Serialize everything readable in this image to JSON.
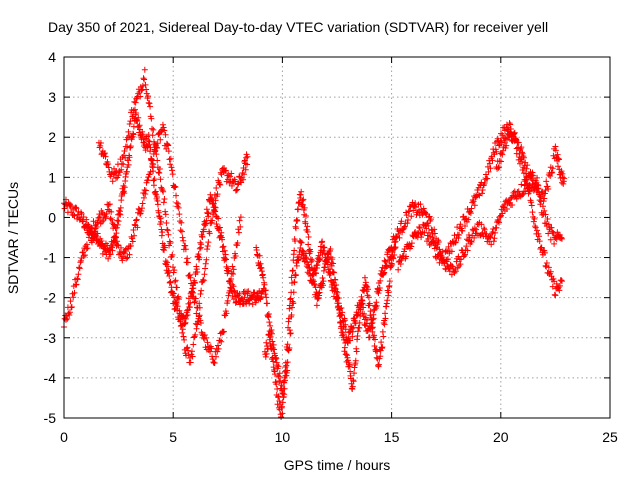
{
  "chart_data": {
    "type": "scatter",
    "title": "Day 350 of 2021, Sidereal Day-to-day VTEC variation (SDTVAR) for receiver yell",
    "xlabel": "GPS time / hours",
    "ylabel": "SDTVAR / TECUs",
    "xlim": [
      0,
      25
    ],
    "ylim": [
      -5,
      4
    ],
    "xticks": [
      0,
      5,
      10,
      15,
      20,
      25
    ],
    "yticks": [
      -5,
      -4,
      -3,
      -2,
      -1,
      0,
      1,
      2,
      3,
      4
    ],
    "xtick_labels": [
      "0",
      "5",
      "10",
      "15",
      "20",
      "25"
    ],
    "ytick_labels": [
      "-5",
      "-4",
      "-3",
      "-2",
      "-1",
      "0",
      "1",
      "2",
      "3",
      "4"
    ],
    "grid": true,
    "marker": "+",
    "series": [
      {
        "name": "SDTVAR",
        "color": "#ff0000",
        "segments": [
          {
            "x": [
              0.0,
              0.3,
              0.6,
              0.9,
              1.1,
              1.3,
              1.5,
              1.7,
              1.9,
              2.1,
              2.3,
              2.5,
              2.7,
              2.9,
              3.1,
              3.3,
              3.5,
              3.7,
              3.9,
              4.1,
              4.3,
              4.5,
              4.7,
              4.9,
              5.1,
              5.3,
              5.5,
              5.7,
              5.9,
              6.1,
              6.3,
              6.5,
              6.7,
              6.9,
              7.1,
              7.3,
              7.5,
              7.7,
              7.9,
              8.1,
              8.3,
              8.5,
              8.7,
              8.9,
              9.1
            ],
            "y": [
              0.3,
              0.2,
              0.1,
              -0.1,
              -0.3,
              -0.5,
              -0.4,
              -0.7,
              -0.8,
              -0.9,
              -0.6,
              0.0,
              0.6,
              1.2,
              2.0,
              2.5,
              2.2,
              1.8,
              1.9,
              1.0,
              0.3,
              -0.5,
              -1.2,
              -1.8,
              -2.2,
              -2.5,
              -2.6,
              -2.2,
              -1.8,
              -1.2,
              -0.6,
              0.0,
              0.4,
              0.2,
              -0.3,
              -0.8,
              -1.3,
              -1.8,
              -2.0,
              -2.0,
              -2.0,
              -2.0,
              -2.0,
              -2.0,
              -2.0
            ]
          },
          {
            "x": [
              0.0,
              0.3,
              0.6,
              0.9,
              1.2,
              1.5,
              1.8,
              2.1,
              2.4,
              2.7,
              3.0,
              3.3,
              3.6,
              3.9,
              4.2,
              4.5,
              4.8,
              5.1,
              5.4,
              5.7,
              6.0,
              6.3,
              6.6,
              6.9,
              7.2,
              7.5,
              7.8,
              8.1
            ],
            "y": [
              -2.6,
              -2.2,
              -1.5,
              -0.9,
              -0.4,
              -0.1,
              0.1,
              0.2,
              -0.6,
              -1.0,
              -0.8,
              -0.2,
              0.4,
              1.1,
              1.7,
              2.2,
              1.6,
              0.6,
              -0.4,
              -1.3,
              -2.1,
              -2.8,
              -3.3,
              -3.5,
              -3.0,
              -2.2,
              -1.0,
              0.0
            ]
          },
          {
            "x": [
              1.6,
              1.9,
              2.2,
              2.5,
              2.8,
              3.1,
              3.4,
              3.7,
              4.0,
              4.3,
              4.6,
              4.9,
              5.2,
              5.5,
              5.8,
              6.1,
              6.4,
              6.7,
              7.0,
              7.3,
              7.6,
              7.9,
              8.2,
              8.4
            ],
            "y": [
              1.9,
              1.5,
              1.0,
              1.2,
              1.6,
              2.6,
              3.0,
              3.6,
              2.4,
              1.4,
              0.3,
              -0.9,
              -1.9,
              -3.2,
              -3.6,
              -2.6,
              -1.4,
              -0.2,
              0.7,
              1.1,
              1.0,
              0.7,
              1.1,
              1.5
            ]
          },
          {
            "x": [
              8.8,
              9.0,
              9.2,
              9.4,
              9.6,
              9.8,
              10.0,
              10.2,
              10.4,
              10.6,
              10.8,
              11.0,
              11.2,
              11.4,
              11.6,
              11.8,
              12.0,
              12.2,
              12.4,
              12.6,
              12.8,
              13.0,
              13.2,
              13.4,
              13.6,
              13.8,
              14.0,
              14.2,
              14.4,
              14.6,
              14.8,
              15.0
            ],
            "y": [
              -0.8,
              -1.2,
              -1.8,
              -2.6,
              -3.3,
              -3.8,
              -4.4,
              -3.8,
              -2.6,
              -1.4,
              -0.7,
              -0.9,
              -1.3,
              -1.6,
              -1.2,
              -0.7,
              -1.0,
              -1.5,
              -1.9,
              -2.2,
              -2.6,
              -3.0,
              -2.8,
              -2.4,
              -2.1,
              -2.6,
              -2.9,
              -2.4,
              -1.8,
              -1.3,
              -1.0,
              -0.8
            ]
          },
          {
            "x": [
              9.2,
              9.4,
              9.6,
              9.8,
              10.0,
              10.2,
              10.4,
              10.6,
              10.8,
              11.0,
              11.2,
              11.4,
              11.6,
              11.8,
              12.0,
              12.2,
              12.4,
              12.6,
              12.8,
              13.0,
              13.2,
              13.4,
              13.6,
              13.8,
              14.0,
              14.2,
              14.4,
              14.6,
              14.8,
              15.0,
              15.2
            ],
            "y": [
              -3.4,
              -3.0,
              -3.6,
              -4.6,
              -4.9,
              -3.4,
              -1.8,
              -0.3,
              0.6,
              0.2,
              -0.6,
              -1.4,
              -2.1,
              -1.7,
              -1.1,
              -0.9,
              -1.6,
              -2.3,
              -3.1,
              -3.6,
              -4.3,
              -3.3,
              -2.1,
              -1.6,
              -2.2,
              -3.1,
              -3.6,
              -3.0,
              -2.0,
              -1.1,
              -0.6
            ]
          },
          {
            "x": [
              15.0,
              15.3,
              15.6,
              15.9,
              16.2,
              16.5,
              16.8,
              17.1,
              17.4,
              17.7,
              18.0,
              18.3,
              18.6,
              18.9,
              19.2,
              19.5,
              19.8,
              20.1,
              20.4,
              20.7,
              21.0,
              21.3,
              21.6,
              21.9,
              22.2,
              22.5,
              22.8
            ],
            "y": [
              -0.7,
              -0.4,
              -0.1,
              0.2,
              0.2,
              0.1,
              -0.2,
              -0.7,
              -1.0,
              -0.8,
              -0.4,
              -0.1,
              0.2,
              0.5,
              0.8,
              1.3,
              1.8,
              2.1,
              2.2,
              1.8,
              1.3,
              0.6,
              -0.2,
              -0.8,
              -1.4,
              -1.8,
              -1.7
            ]
          },
          {
            "x": [
              15.3,
              15.6,
              15.9,
              16.2,
              16.5,
              16.8,
              17.1,
              17.4,
              17.7,
              18.0,
              18.3,
              18.6,
              18.9,
              19.2,
              19.5,
              19.8,
              20.1,
              20.4,
              20.7,
              21.0,
              21.3,
              21.6,
              21.9,
              22.2,
              22.5,
              22.8
            ],
            "y": [
              -1.2,
              -0.9,
              -0.6,
              -0.4,
              -0.3,
              -0.6,
              -0.9,
              -1.1,
              -1.3,
              -1.2,
              -0.9,
              -0.5,
              -0.3,
              -0.3,
              -0.6,
              -0.3,
              0.2,
              0.4,
              0.6,
              0.7,
              0.9,
              0.8,
              0.2,
              -0.3,
              -0.6,
              -0.4
            ]
          },
          {
            "x": [
              19.8,
              20.1,
              20.4,
              20.7,
              21.0,
              21.3,
              21.6,
              21.9,
              22.2,
              22.5,
              22.7,
              22.9
            ],
            "y": [
              1.2,
              1.7,
              2.2,
              1.9,
              1.5,
              1.0,
              0.9,
              0.5,
              0.9,
              1.7,
              1.2,
              0.8
            ]
          }
        ]
      }
    ]
  }
}
